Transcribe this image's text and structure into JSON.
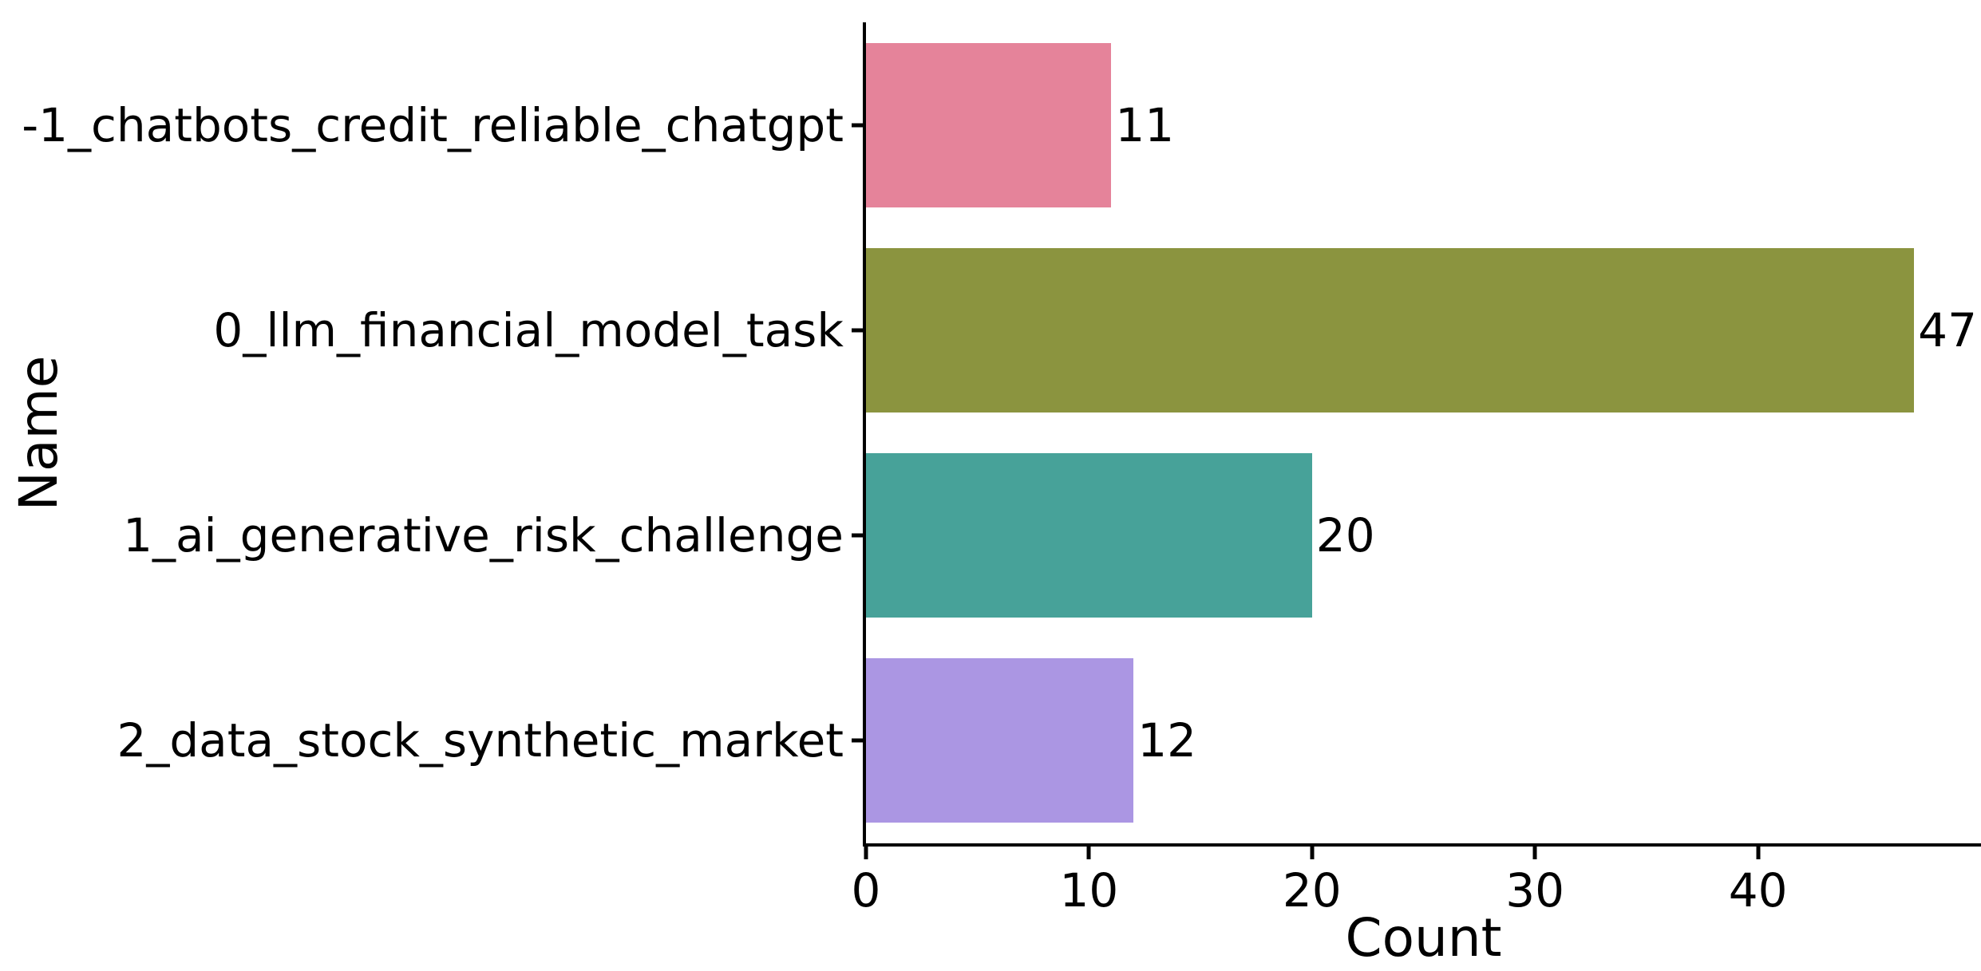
{
  "chart_data": {
    "type": "bar",
    "orientation": "horizontal",
    "title": "",
    "xlabel": "Count",
    "ylabel": "Name",
    "categories": [
      "-1_chatbots_credit_reliable_chatgpt",
      "0_llm_financial_model_task",
      "1_ai_generative_risk_challenge",
      "2_data_stock_synthetic_market"
    ],
    "values": [
      11,
      47,
      20,
      12
    ],
    "bar_labels": [
      "11",
      "47",
      "20",
      "12"
    ],
    "bar_colors": [
      "#e5839a",
      "#8b943f",
      "#47a299",
      "#ab96e3"
    ],
    "xticks": [
      0,
      10,
      20,
      30,
      40
    ],
    "xlim": [
      0,
      50
    ],
    "bar_width_fraction": 0.8,
    "grid": false,
    "legend": null,
    "background_color": "#ffffff",
    "axis_color": "#000000",
    "text_color": "#000000"
  }
}
